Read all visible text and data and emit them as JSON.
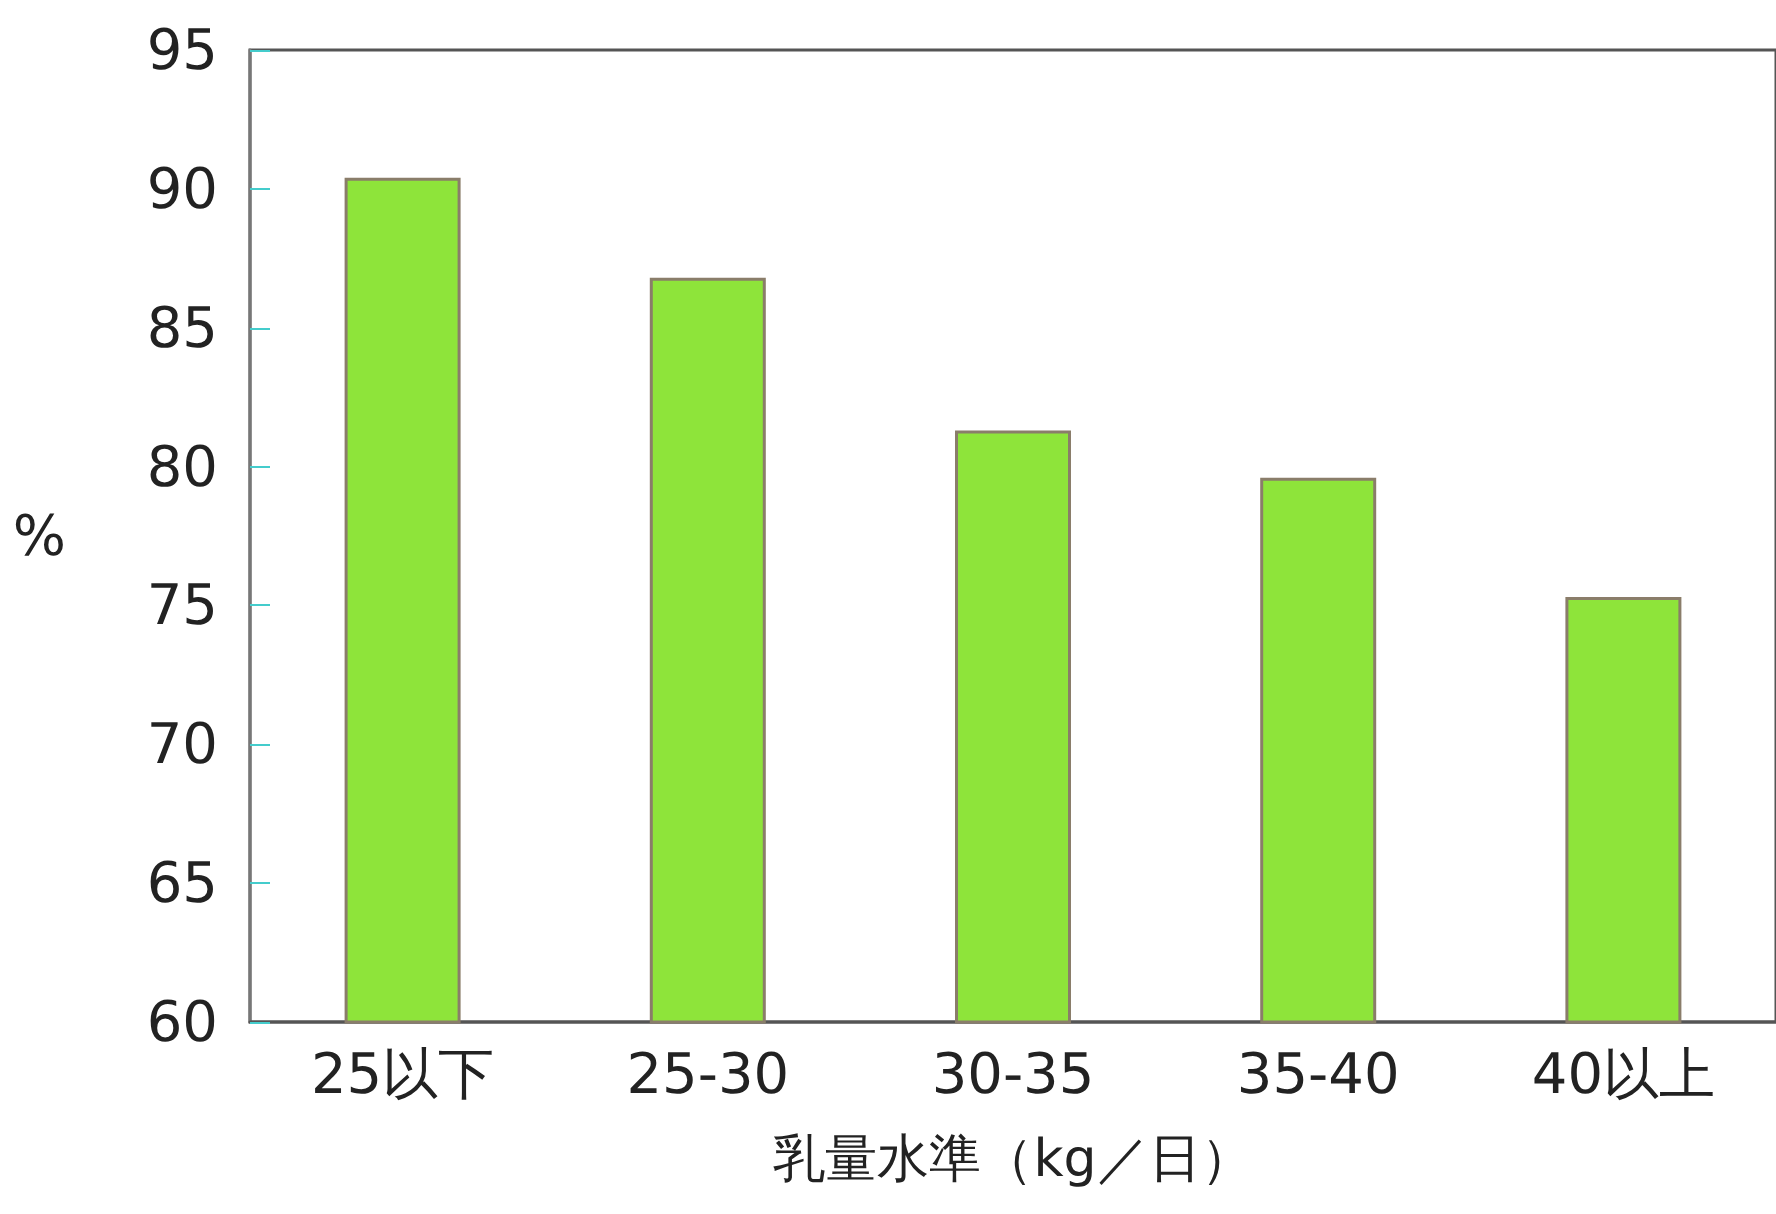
{
  "chart_data": {
    "type": "bar",
    "xlabel": "乳量水準（kg／日）",
    "ylabel": "%",
    "categories": [
      "25以下",
      "25-30",
      "30-35",
      "35-40",
      "40以上"
    ],
    "values": [
      90.4,
      86.8,
      81.3,
      79.6,
      75.3
    ],
    "color": "#8ee43a",
    "ylim": [
      60,
      95
    ],
    "yticks": [
      60,
      65,
      70,
      75,
      80,
      85,
      90,
      95
    ],
    "grid": false
  }
}
